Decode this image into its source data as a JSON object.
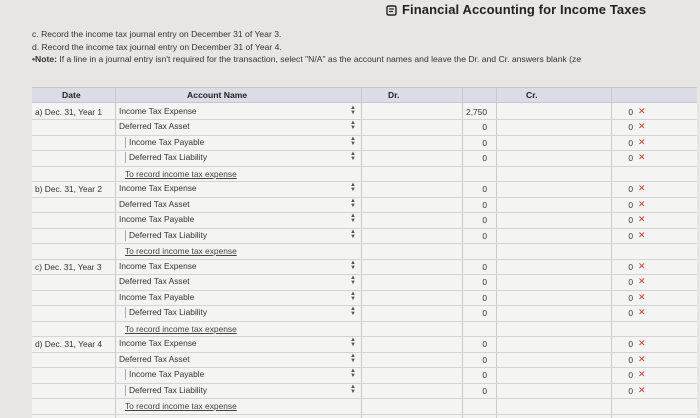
{
  "header": {
    "title": "Financial Accounting for Income Taxes",
    "icon": "book-icon"
  },
  "instructions": {
    "line_c": "c. Record the income tax journal entry on December 31 of Year 3.",
    "line_d": "d. Record the income tax journal entry on December 31 of Year 4.",
    "note_bullet": "•",
    "note_label": "Note:",
    "note_text": " If a line in a journal entry isn't required for the transaction, select \"N/A\" as the account names and leave the Dr. and Cr. answers blank (ze"
  },
  "table": {
    "headers": {
      "date": "Date",
      "account": "Account Name",
      "dr": "Dr.",
      "cr": "Cr."
    },
    "entries": [
      {
        "date": "a) Dec. 31, Year 1",
        "lines": [
          {
            "account": "Income Tax Expense",
            "indent": false,
            "dr": "2,750",
            "cr": "0"
          },
          {
            "account": "Deferred Tax Asset",
            "indent": false,
            "dr": "0",
            "cr": "0"
          },
          {
            "account": "Income Tax Payable",
            "indent": true,
            "dr": "0",
            "cr": "0"
          },
          {
            "account": "Deferred Tax Liability",
            "indent": true,
            "dr": "0",
            "cr": "0"
          }
        ],
        "memo": "To record income tax expense"
      },
      {
        "date": "b) Dec. 31, Year 2",
        "lines": [
          {
            "account": "Income Tax Expense",
            "indent": false,
            "dr": "0",
            "cr": "0"
          },
          {
            "account": "Deferred Tax Asset",
            "indent": false,
            "dr": "0",
            "cr": "0"
          },
          {
            "account": "Income Tax Payable",
            "indent": false,
            "dr": "0",
            "cr": "0"
          },
          {
            "account": "Deferred Tax Liability",
            "indent": true,
            "dr": "0",
            "cr": "0"
          }
        ],
        "memo": "To record income tax expense"
      },
      {
        "date": "c) Dec. 31, Year 3",
        "lines": [
          {
            "account": "Income Tax Expense",
            "indent": false,
            "dr": "0",
            "cr": "0"
          },
          {
            "account": "Deferred Tax Asset",
            "indent": false,
            "dr": "0",
            "cr": "0"
          },
          {
            "account": "Income Tax Payable",
            "indent": false,
            "dr": "0",
            "cr": "0"
          },
          {
            "account": "Deferred Tax Liability",
            "indent": true,
            "dr": "0",
            "cr": "0"
          }
        ],
        "memo": "To record income tax expense"
      },
      {
        "date": "d) Dec. 31, Year 4",
        "lines": [
          {
            "account": "Income Tax Expense",
            "indent": false,
            "dr": "0",
            "cr": "0"
          },
          {
            "account": "Deferred Tax Asset",
            "indent": false,
            "dr": "0",
            "cr": "0"
          },
          {
            "account": "Income Tax Payable",
            "indent": true,
            "dr": "0",
            "cr": "0"
          },
          {
            "account": "Deferred Tax Liability",
            "indent": true,
            "dr": "0",
            "cr": "0"
          }
        ],
        "memo": "To record income tax expense"
      }
    ],
    "wrong_marker": "✕",
    "wrong_color": "#c0392b"
  }
}
